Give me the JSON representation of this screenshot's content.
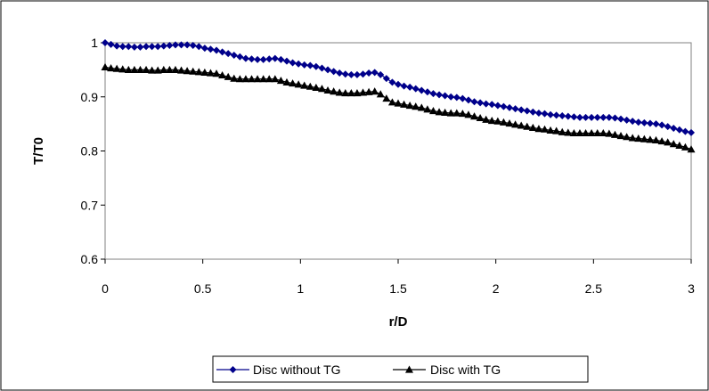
{
  "chart_data": {
    "type": "line",
    "title": "",
    "xlabel": "r/D",
    "ylabel": "T/T0",
    "xlim": [
      0,
      3
    ],
    "ylim": [
      0.6,
      1.0
    ],
    "x_ticks": [
      "0",
      "0.5",
      "1",
      "1.5",
      "2",
      "2.5",
      "3"
    ],
    "y_ticks": [
      "0.6",
      "0.7",
      "0.8",
      "0.9",
      "1"
    ],
    "grid": false,
    "legend_position": "bottom",
    "series": [
      {
        "name": "Disc without TG",
        "color": "#00008B",
        "marker": "diamond",
        "x": [
          0.0,
          0.03,
          0.06,
          0.09,
          0.12,
          0.15,
          0.18,
          0.21,
          0.24,
          0.27,
          0.3,
          0.33,
          0.36,
          0.39,
          0.42,
          0.45,
          0.48,
          0.51,
          0.54,
          0.57,
          0.6,
          0.63,
          0.66,
          0.69,
          0.72,
          0.75,
          0.78,
          0.81,
          0.84,
          0.87,
          0.9,
          0.93,
          0.96,
          0.99,
          1.02,
          1.05,
          1.08,
          1.11,
          1.14,
          1.17,
          1.2,
          1.23,
          1.26,
          1.29,
          1.32,
          1.35,
          1.38,
          1.41,
          1.44,
          1.47,
          1.5,
          1.53,
          1.56,
          1.59,
          1.62,
          1.65,
          1.68,
          1.71,
          1.74,
          1.77,
          1.8,
          1.83,
          1.86,
          1.89,
          1.92,
          1.95,
          1.98,
          2.01,
          2.04,
          2.07,
          2.1,
          2.13,
          2.16,
          2.19,
          2.22,
          2.25,
          2.28,
          2.31,
          2.34,
          2.37,
          2.4,
          2.43,
          2.46,
          2.49,
          2.52,
          2.55,
          2.58,
          2.61,
          2.64,
          2.67,
          2.7,
          2.73,
          2.76,
          2.79,
          2.82,
          2.85,
          2.88,
          2.91,
          2.94,
          2.97,
          3.0
        ],
        "values": [
          1.0,
          0.997,
          0.994,
          0.993,
          0.993,
          0.992,
          0.992,
          0.993,
          0.993,
          0.993,
          0.994,
          0.995,
          0.996,
          0.996,
          0.996,
          0.995,
          0.993,
          0.99,
          0.988,
          0.986,
          0.983,
          0.98,
          0.977,
          0.974,
          0.971,
          0.97,
          0.969,
          0.969,
          0.97,
          0.971,
          0.969,
          0.966,
          0.963,
          0.961,
          0.959,
          0.958,
          0.956,
          0.953,
          0.95,
          0.947,
          0.944,
          0.942,
          0.941,
          0.941,
          0.942,
          0.944,
          0.945,
          0.941,
          0.934,
          0.927,
          0.923,
          0.92,
          0.918,
          0.915,
          0.912,
          0.909,
          0.906,
          0.904,
          0.902,
          0.9,
          0.899,
          0.897,
          0.894,
          0.891,
          0.889,
          0.887,
          0.886,
          0.884,
          0.882,
          0.88,
          0.878,
          0.876,
          0.874,
          0.872,
          0.87,
          0.869,
          0.867,
          0.866,
          0.865,
          0.864,
          0.863,
          0.862,
          0.862,
          0.862,
          0.862,
          0.862,
          0.862,
          0.861,
          0.859,
          0.857,
          0.855,
          0.853,
          0.852,
          0.851,
          0.85,
          0.848,
          0.845,
          0.842,
          0.839,
          0.836,
          0.834
        ]
      },
      {
        "name": "Disc with TG",
        "color": "#000000",
        "marker": "triangle",
        "x": [
          0.0,
          0.03,
          0.06,
          0.09,
          0.12,
          0.15,
          0.18,
          0.21,
          0.24,
          0.27,
          0.3,
          0.33,
          0.36,
          0.39,
          0.42,
          0.45,
          0.48,
          0.51,
          0.54,
          0.57,
          0.6,
          0.63,
          0.66,
          0.69,
          0.72,
          0.75,
          0.78,
          0.81,
          0.84,
          0.87,
          0.9,
          0.93,
          0.96,
          0.99,
          1.02,
          1.05,
          1.08,
          1.11,
          1.14,
          1.17,
          1.2,
          1.23,
          1.26,
          1.29,
          1.32,
          1.35,
          1.38,
          1.41,
          1.44,
          1.47,
          1.5,
          1.53,
          1.56,
          1.59,
          1.62,
          1.65,
          1.68,
          1.71,
          1.74,
          1.77,
          1.8,
          1.83,
          1.86,
          1.89,
          1.92,
          1.95,
          1.98,
          2.01,
          2.04,
          2.07,
          2.1,
          2.13,
          2.16,
          2.19,
          2.22,
          2.25,
          2.28,
          2.31,
          2.34,
          2.37,
          2.4,
          2.43,
          2.46,
          2.49,
          2.52,
          2.55,
          2.58,
          2.61,
          2.64,
          2.67,
          2.7,
          2.73,
          2.76,
          2.79,
          2.82,
          2.85,
          2.88,
          2.91,
          2.94,
          2.97,
          3.0
        ],
        "values": [
          0.955,
          0.953,
          0.952,
          0.951,
          0.95,
          0.95,
          0.95,
          0.95,
          0.949,
          0.949,
          0.95,
          0.95,
          0.95,
          0.949,
          0.948,
          0.947,
          0.946,
          0.945,
          0.944,
          0.943,
          0.94,
          0.937,
          0.934,
          0.933,
          0.933,
          0.933,
          0.933,
          0.933,
          0.933,
          0.933,
          0.93,
          0.927,
          0.925,
          0.923,
          0.921,
          0.919,
          0.917,
          0.915,
          0.912,
          0.91,
          0.908,
          0.907,
          0.907,
          0.907,
          0.908,
          0.909,
          0.91,
          0.905,
          0.897,
          0.89,
          0.888,
          0.886,
          0.884,
          0.882,
          0.88,
          0.877,
          0.874,
          0.872,
          0.871,
          0.87,
          0.87,
          0.869,
          0.867,
          0.864,
          0.861,
          0.858,
          0.856,
          0.855,
          0.853,
          0.851,
          0.849,
          0.847,
          0.845,
          0.843,
          0.841,
          0.84,
          0.838,
          0.837,
          0.835,
          0.834,
          0.833,
          0.833,
          0.833,
          0.833,
          0.833,
          0.833,
          0.832,
          0.83,
          0.828,
          0.826,
          0.824,
          0.823,
          0.822,
          0.821,
          0.82,
          0.818,
          0.816,
          0.813,
          0.81,
          0.807,
          0.803
        ]
      }
    ]
  }
}
